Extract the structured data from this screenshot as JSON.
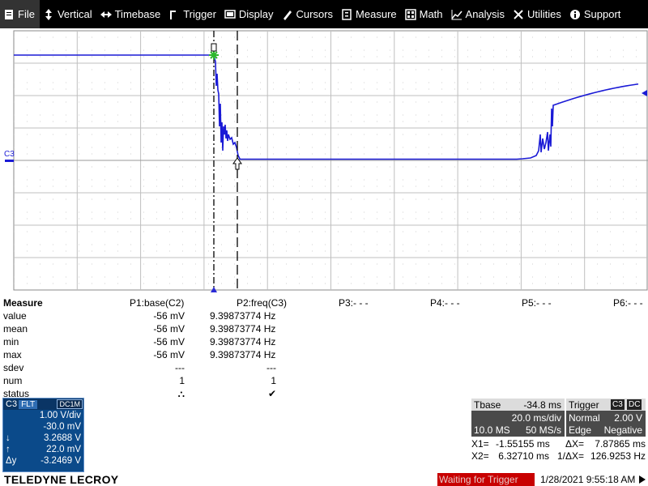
{
  "menu": [
    {
      "label": "File",
      "icon": "file-icon"
    },
    {
      "label": "Vertical",
      "icon": "vertical-icon"
    },
    {
      "label": "Timebase",
      "icon": "timebase-icon"
    },
    {
      "label": "Trigger",
      "icon": "trigger-icon"
    },
    {
      "label": "Display",
      "icon": "display-icon"
    },
    {
      "label": "Cursors",
      "icon": "cursors-icon"
    },
    {
      "label": "Measure",
      "icon": "measure-icon"
    },
    {
      "label": "Math",
      "icon": "math-icon"
    },
    {
      "label": "Analysis",
      "icon": "analysis-icon"
    },
    {
      "label": "Utilities",
      "icon": "utilities-icon"
    },
    {
      "label": "Support",
      "icon": "support-icon"
    }
  ],
  "trace": {
    "channel_label": "C3",
    "color": "#1a1ad6"
  },
  "measure": {
    "title": "Measure",
    "columns": [
      "P1:base(C2)",
      "P2:freq(C3)",
      "P3:- - -",
      "P4:- - -",
      "P5:- - -",
      "P6:- - -"
    ],
    "rows": [
      {
        "label": "value",
        "p1": "-56 mV",
        "p2": "9.39873774 Hz"
      },
      {
        "label": "mean",
        "p1": "-56 mV",
        "p2": "9.39873774 Hz"
      },
      {
        "label": "min",
        "p1": "-56 mV",
        "p2": "9.39873774 Hz"
      },
      {
        "label": "max",
        "p1": "-56 mV",
        "p2": "9.39873774 Hz"
      },
      {
        "label": "sdev",
        "p1": "---",
        "p2": "---"
      },
      {
        "label": "num",
        "p1": "1",
        "p2": "1"
      },
      {
        "label": "status",
        "p1": "⛬",
        "p2": "✔"
      }
    ]
  },
  "channel_box": {
    "name": "C3",
    "tags": [
      "FLT",
      "DC1M"
    ],
    "vdiv": "1.00 V/div",
    "offset": "-30.0 mV",
    "cursor_down_label": "↓",
    "cursor_down": "3.2688 V",
    "cursor_up_label": "↑",
    "cursor_up": "22.0 mV",
    "delta_label": "Δy",
    "delta": "-3.2469 V"
  },
  "timebase": {
    "label": "Tbase",
    "delay": "-34.8 ms",
    "tdiv": "20.0 ms/div",
    "samples": "10.0 MS",
    "rate": "50 MS/s"
  },
  "trigger": {
    "label": "Trigger",
    "source": "C3",
    "coupling": "DC",
    "mode": "Normal",
    "level": "2.00 V",
    "type": "Edge",
    "slope": "Negative"
  },
  "cursors": {
    "x1_label": "X1=",
    "x1": "-1.55155 ms",
    "dx_label": "ΔX=",
    "dx": "7.87865 ms",
    "x2_label": "X2=",
    "x2": "6.32710 ms",
    "inv_dx_label": "1/ΔX=",
    "inv_dx": "126.9253 Hz"
  },
  "footer": {
    "brand": "TELEDYNE LECROY",
    "status": "Waiting for Trigger",
    "datetime": "1/28/2021 9:55:18 AM"
  }
}
